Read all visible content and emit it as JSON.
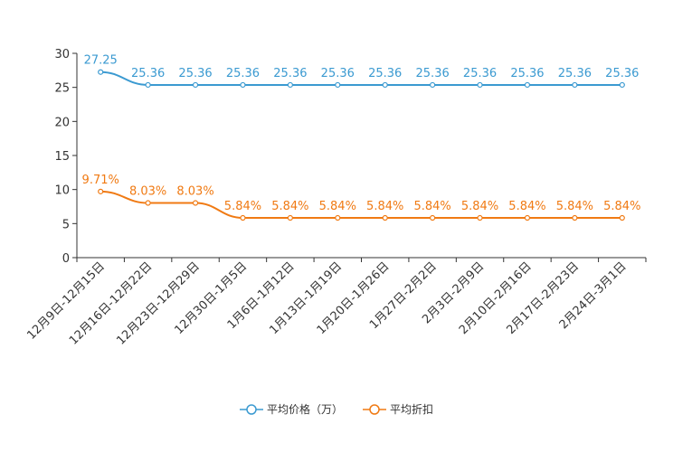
{
  "chart_data": {
    "type": "line",
    "categories": [
      "12月9日-12月15日",
      "12月16日-12月22日",
      "12月23日-12月29日",
      "12月30日-1月5日",
      "1月6日-1月12日",
      "1月13日-1月19日",
      "1月20日-1月26日",
      "1月27日-2月2日",
      "2月3日-2月9日",
      "2月10日-2月16日",
      "2月17日-2月23日",
      "2月24日-3月1日"
    ],
    "ylim": [
      0,
      30
    ],
    "yticks": [
      0,
      5,
      10,
      15,
      20,
      25,
      30
    ],
    "series": [
      {
        "name": "平均价格（万）",
        "color": "#3b9ad1",
        "values": [
          27.25,
          25.36,
          25.36,
          25.36,
          25.36,
          25.36,
          25.36,
          25.36,
          25.36,
          25.36,
          25.36,
          25.36
        ],
        "labels": [
          "27.25",
          "25.36",
          "25.36",
          "25.36",
          "25.36",
          "25.36",
          "25.36",
          "25.36",
          "25.36",
          "25.36",
          "25.36",
          "25.36"
        ]
      },
      {
        "name": "平均折扣",
        "color": "#f07a13",
        "values": [
          9.71,
          8.03,
          8.03,
          5.84,
          5.84,
          5.84,
          5.84,
          5.84,
          5.84,
          5.84,
          5.84,
          5.84
        ],
        "labels": [
          "9.71%",
          "8.03%",
          "8.03%",
          "5.84%",
          "5.84%",
          "5.84%",
          "5.84%",
          "5.84%",
          "5.84%",
          "5.84%",
          "5.84%",
          "5.84%"
        ]
      }
    ]
  }
}
